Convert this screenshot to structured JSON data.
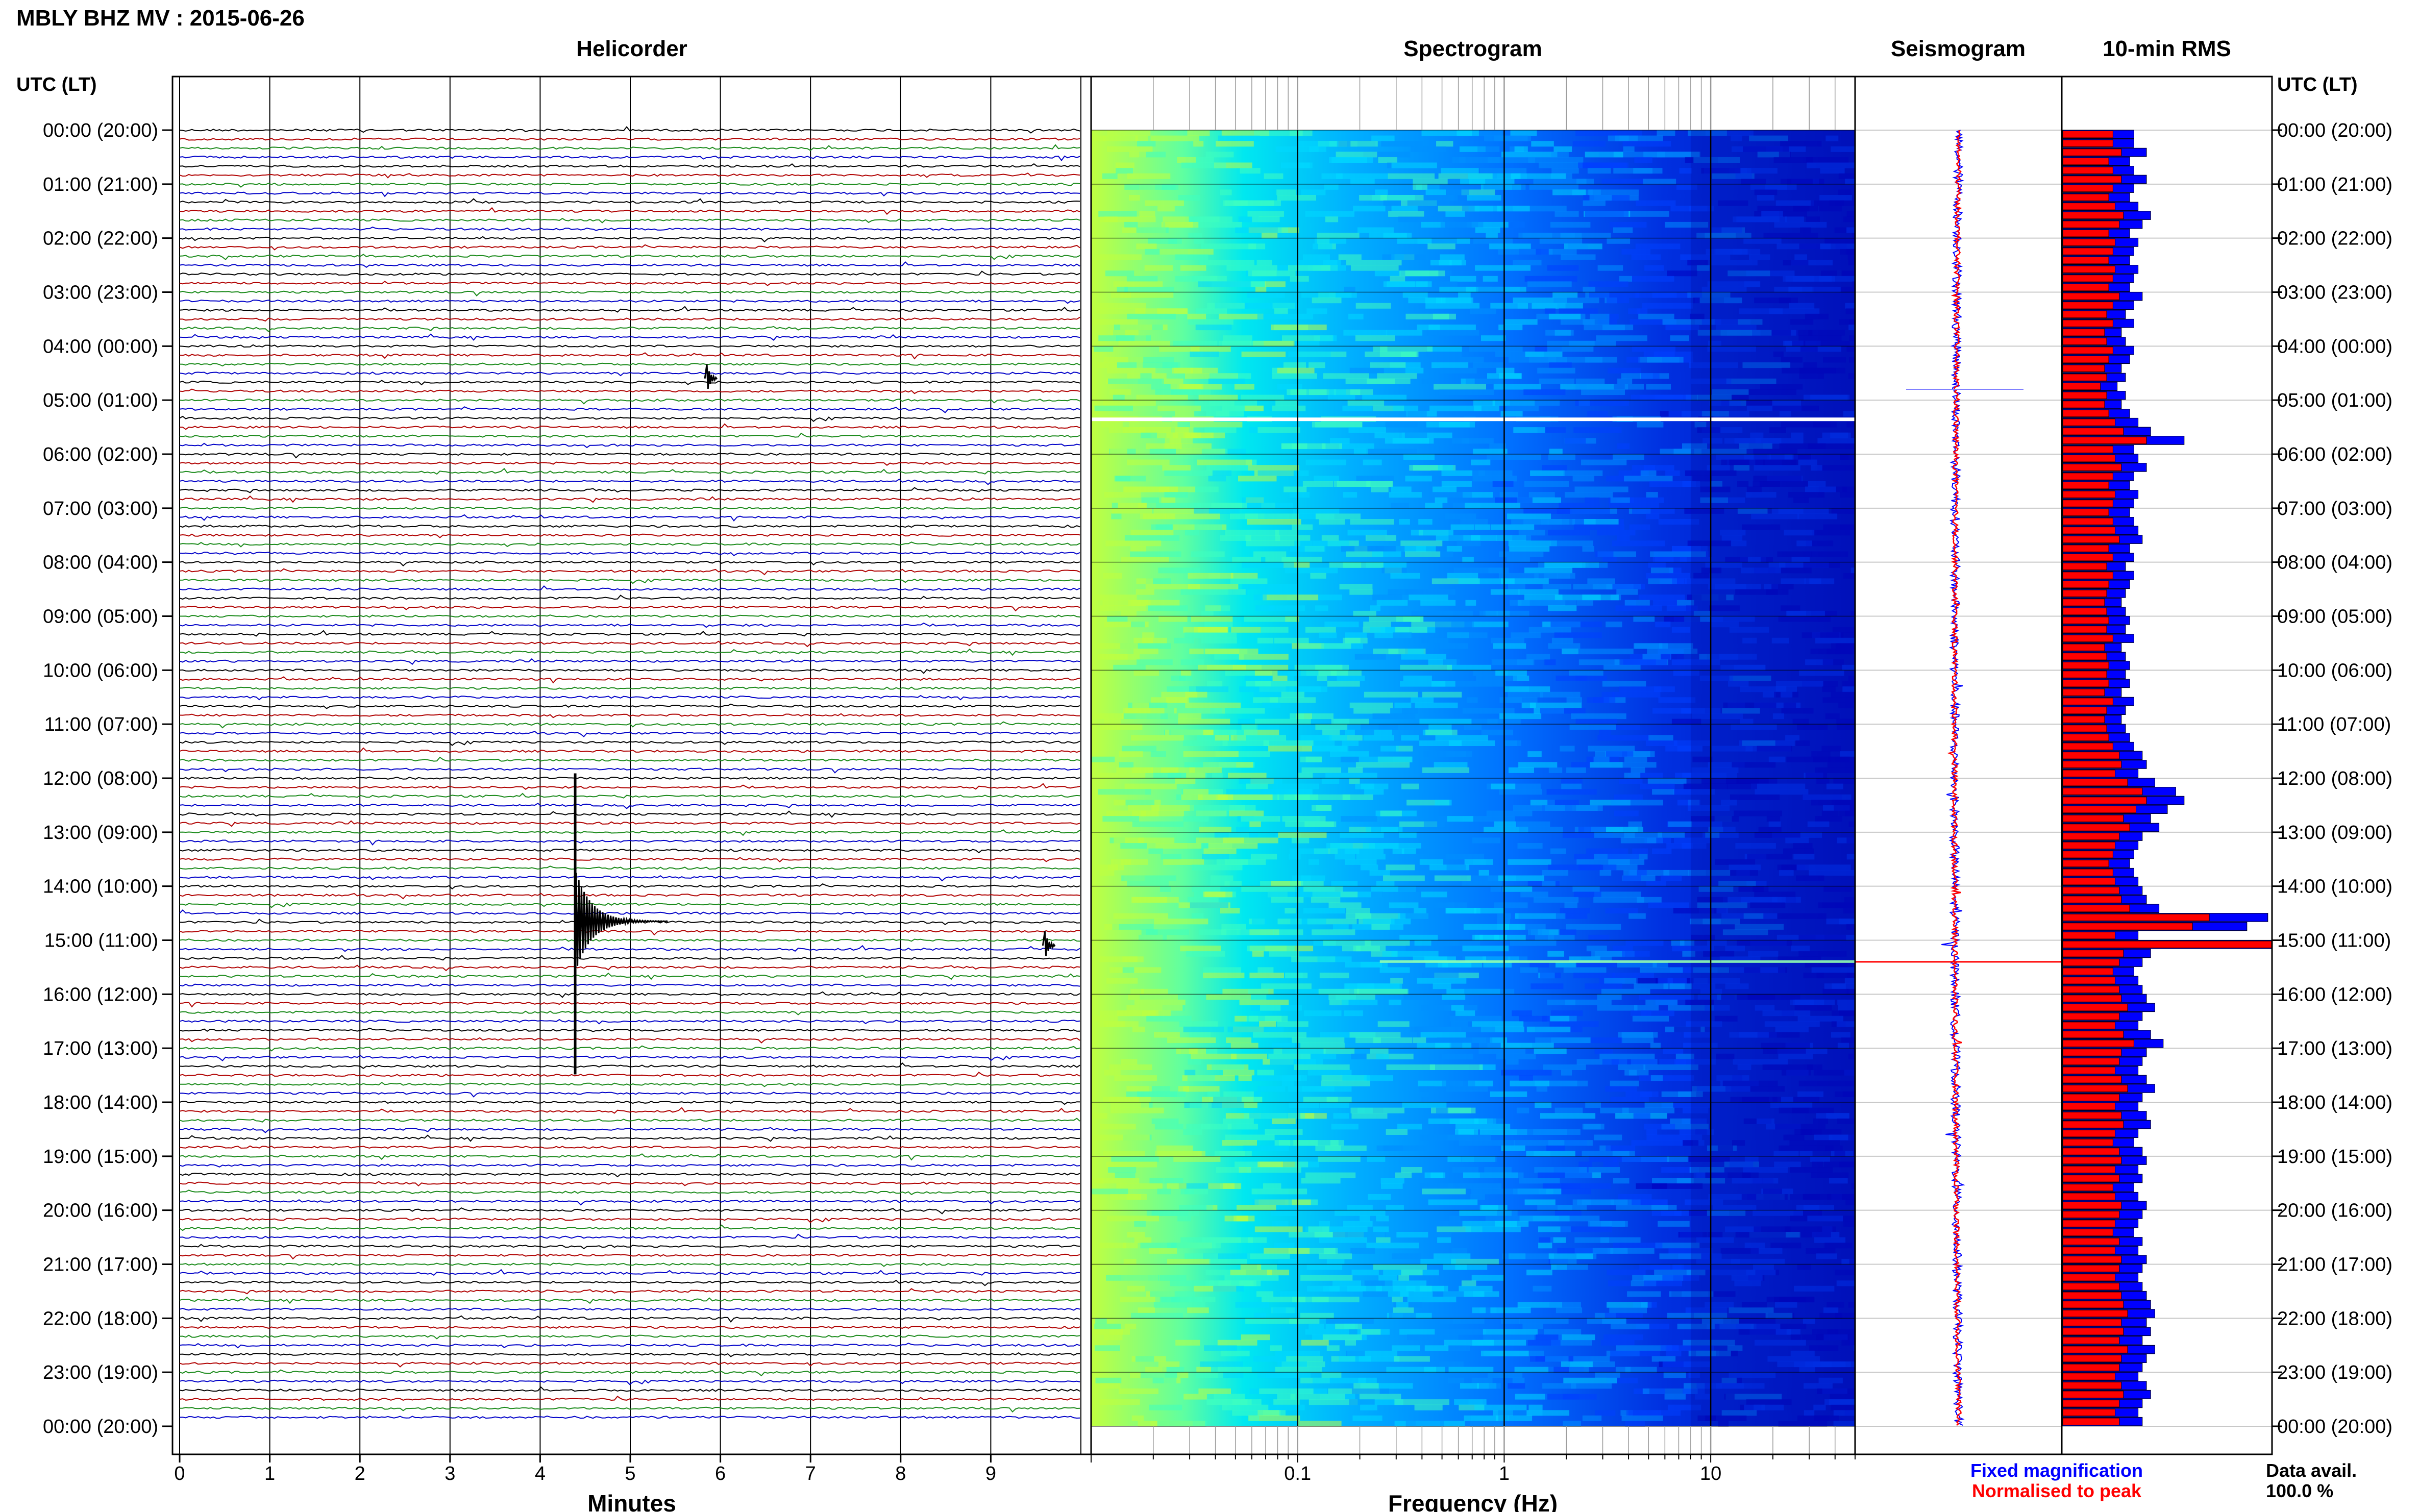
{
  "header": {
    "station_title": "MBLY BHZ MV : 2015-06-26"
  },
  "panel_titles": {
    "helicorder": "Helicorder",
    "spectrogram": "Spectrogram",
    "seismogram": "Seismogram",
    "rms": "10-min RMS"
  },
  "axis_labels": {
    "time_left": "UTC (LT)",
    "time_right": "UTC (LT)",
    "minutes": "Minutes",
    "frequency": "Frequency (Hz)"
  },
  "legend": {
    "fixed": "Fixed magnification",
    "normalised": "Normalised to peak",
    "fixed_color": "#0000ff",
    "normalised_color": "#ff0000"
  },
  "availability": {
    "label": "Data avail.",
    "value": "100.0 %"
  },
  "time_labels": [
    "00:00 (20:00)",
    "01:00 (21:00)",
    "02:00 (22:00)",
    "03:00 (23:00)",
    "04:00 (00:00)",
    "05:00 (01:00)",
    "06:00 (02:00)",
    "07:00 (03:00)",
    "08:00 (04:00)",
    "09:00 (05:00)",
    "10:00 (06:00)",
    "11:00 (07:00)",
    "12:00 (08:00)",
    "13:00 (09:00)",
    "14:00 (10:00)",
    "15:00 (11:00)",
    "16:00 (12:00)",
    "17:00 (13:00)",
    "18:00 (14:00)",
    "19:00 (15:00)",
    "20:00 (16:00)",
    "21:00 (17:00)",
    "22:00 (18:00)",
    "23:00 (19:00)",
    "00:00 (20:00)"
  ],
  "chart_data": [
    {
      "type": "line",
      "panel": "helicorder",
      "xlabel": "Minutes",
      "x_ticks": [
        "0",
        "1",
        "2",
        "3",
        "4",
        "5",
        "6",
        "7",
        "8",
        "9"
      ],
      "xlim": [
        0,
        10
      ],
      "trace_colors": [
        "#000000",
        "#b00000",
        "#1a8a1a",
        "#0000c8"
      ],
      "events": [
        {
          "time_hour": 4.6,
          "minute": 5.85,
          "amplitude": "small"
        },
        {
          "time_hour": 14.65,
          "minute": 4.4,
          "amplitude": "large"
        },
        {
          "time_hour": 15.1,
          "minute": 9.6,
          "amplitude": "small"
        }
      ]
    },
    {
      "type": "heatmap",
      "panel": "spectrogram",
      "xlabel": "Frequency (Hz)",
      "x_scale": "log",
      "x_ticks": [
        "0.1",
        "1",
        "10"
      ],
      "xlim": [
        0.01,
        50
      ],
      "colormap": [
        "#0000c0",
        "#0040ff",
        "#0090ff",
        "#00d8ff",
        "#40ffc0",
        "#c0ff40"
      ],
      "data_gap_hour": 5.35,
      "event_line_hour": 15.4
    },
    {
      "type": "line",
      "panel": "seismogram",
      "series": [
        {
          "name": "Fixed magnification",
          "color": "#0000ff"
        },
        {
          "name": "Normalised to peak",
          "color": "#ff0000"
        }
      ],
      "peak_hour": 15.4
    },
    {
      "type": "bar",
      "panel": "rms",
      "interval_minutes": 10,
      "series": [
        {
          "name": "Fixed magnification",
          "color": "#0000ff",
          "values": [
            0.34,
            0.34,
            0.4,
            0.32,
            0.34,
            0.4,
            0.34,
            0.32,
            0.36,
            0.42,
            0.38,
            0.32,
            0.36,
            0.34,
            0.32,
            0.36,
            0.34,
            0.32,
            0.38,
            0.34,
            0.3,
            0.34,
            0.28,
            0.3,
            0.34,
            0.32,
            0.28,
            0.3,
            0.26,
            0.3,
            0.28,
            0.32,
            0.36,
            0.42,
            0.58,
            0.34,
            0.36,
            0.4,
            0.34,
            0.32,
            0.36,
            0.34,
            0.32,
            0.34,
            0.36,
            0.38,
            0.32,
            0.34,
            0.3,
            0.34,
            0.32,
            0.3,
            0.28,
            0.3,
            0.32,
            0.3,
            0.34,
            0.28,
            0.3,
            0.32,
            0.3,
            0.32,
            0.28,
            0.34,
            0.3,
            0.28,
            0.3,
            0.32,
            0.34,
            0.38,
            0.4,
            0.36,
            0.44,
            0.54,
            0.58,
            0.5,
            0.42,
            0.46,
            0.38,
            0.36,
            0.34,
            0.32,
            0.34,
            0.36,
            0.38,
            0.4,
            0.46,
            0.98,
            0.88,
            0.36,
            1.0,
            0.42,
            0.38,
            0.34,
            0.36,
            0.38,
            0.4,
            0.44,
            0.38,
            0.36,
            0.42,
            0.48,
            0.4,
            0.38,
            0.36,
            0.4,
            0.44,
            0.38,
            0.36,
            0.4,
            0.42,
            0.36,
            0.34,
            0.38,
            0.4,
            0.36,
            0.38,
            0.34,
            0.36,
            0.4,
            0.38,
            0.36,
            0.34,
            0.38,
            0.36,
            0.4,
            0.38,
            0.36,
            0.38,
            0.4,
            0.42,
            0.44,
            0.4,
            0.42,
            0.38,
            0.44,
            0.4,
            0.38,
            0.36,
            0.4,
            0.42,
            0.38,
            0.36,
            0.38
          ]
        },
        {
          "name": "Normalised to peak",
          "color": "#ff0000",
          "values": [
            0.24,
            0.24,
            0.28,
            0.22,
            0.24,
            0.28,
            0.24,
            0.22,
            0.25,
            0.29,
            0.27,
            0.22,
            0.25,
            0.24,
            0.22,
            0.25,
            0.24,
            0.22,
            0.27,
            0.24,
            0.21,
            0.24,
            0.2,
            0.21,
            0.24,
            0.22,
            0.2,
            0.21,
            0.18,
            0.21,
            0.2,
            0.22,
            0.25,
            0.29,
            0.4,
            0.24,
            0.25,
            0.28,
            0.24,
            0.22,
            0.25,
            0.24,
            0.22,
            0.24,
            0.25,
            0.27,
            0.22,
            0.24,
            0.21,
            0.24,
            0.22,
            0.21,
            0.2,
            0.21,
            0.22,
            0.21,
            0.24,
            0.2,
            0.21,
            0.22,
            0.21,
            0.22,
            0.2,
            0.24,
            0.21,
            0.2,
            0.21,
            0.22,
            0.24,
            0.27,
            0.28,
            0.25,
            0.31,
            0.38,
            0.4,
            0.35,
            0.29,
            0.32,
            0.27,
            0.25,
            0.24,
            0.22,
            0.24,
            0.25,
            0.27,
            0.28,
            0.32,
            0.7,
            0.62,
            0.25,
            1.0,
            0.29,
            0.27,
            0.24,
            0.25,
            0.27,
            0.28,
            0.31,
            0.27,
            0.25,
            0.29,
            0.34,
            0.28,
            0.27,
            0.25,
            0.28,
            0.31,
            0.27,
            0.25,
            0.28,
            0.29,
            0.25,
            0.24,
            0.27,
            0.28,
            0.25,
            0.27,
            0.24,
            0.25,
            0.28,
            0.27,
            0.25,
            0.24,
            0.27,
            0.25,
            0.28,
            0.27,
            0.25,
            0.27,
            0.28,
            0.29,
            0.31,
            0.28,
            0.29,
            0.27,
            0.31,
            0.28,
            0.27,
            0.25,
            0.28,
            0.29,
            0.27,
            0.25,
            0.27
          ]
        }
      ]
    }
  ]
}
